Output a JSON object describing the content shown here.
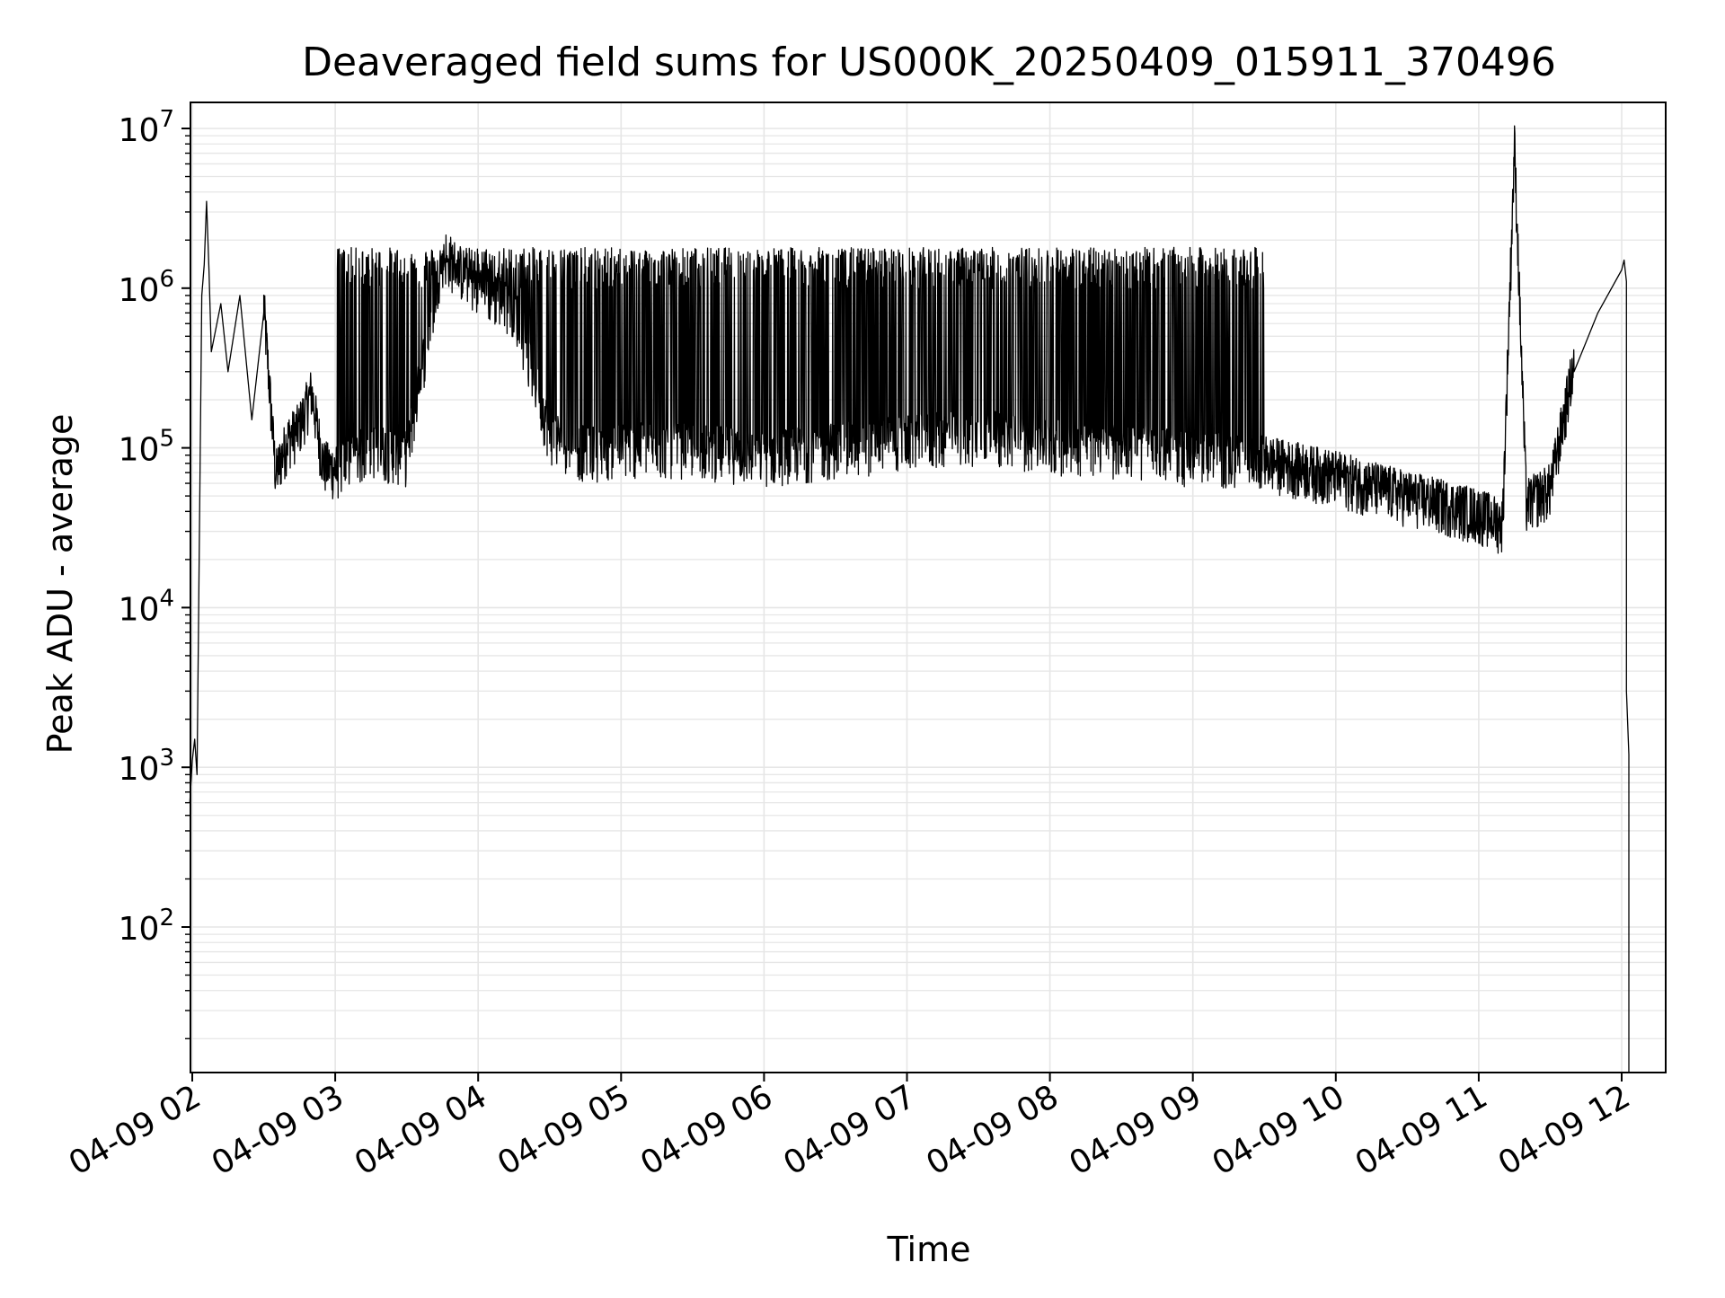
{
  "chart_data": {
    "type": "line",
    "title": "Deaveraged field sums for US000K_20250409_015911_370496",
    "xlabel": "Time",
    "ylabel": "Peak ADU - average",
    "yscale": "log",
    "ylim": [
      12,
      14000000
    ],
    "xlim": [
      "2025-04-09 01:59",
      "2025-04-09 12:03"
    ],
    "grid": true,
    "line_color": "#000000",
    "x_tick_labels": [
      "04-09 02",
      "04-09 03",
      "04-09 04",
      "04-09 05",
      "04-09 06",
      "04-09 07",
      "04-09 08",
      "04-09 09",
      "04-09 10",
      "04-09 11",
      "04-09 12"
    ],
    "y_ticks": [
      {
        "value": 100,
        "base": "10",
        "exp": "2"
      },
      {
        "value": 1000,
        "base": "10",
        "exp": "3"
      },
      {
        "value": 10000,
        "base": "10",
        "exp": "4"
      },
      {
        "value": 100000,
        "base": "10",
        "exp": "5"
      },
      {
        "value": 1000000,
        "base": "10",
        "exp": "6"
      },
      {
        "value": 10000000,
        "base": "10",
        "exp": "7"
      }
    ],
    "series": [
      {
        "points": [
          [
            "2025-04-09 01:59",
            600
          ],
          [
            "2025-04-09 02:00",
            1100
          ],
          [
            "2025-04-09 02:01",
            1500
          ],
          [
            "2025-04-09 02:02",
            900
          ],
          [
            "2025-04-09 02:04",
            900000
          ],
          [
            "2025-04-09 02:05",
            1400000
          ],
          [
            "2025-04-09 02:06",
            3500000
          ],
          [
            "2025-04-09 02:07",
            1300000
          ],
          [
            "2025-04-09 02:08",
            400000
          ],
          [
            "2025-04-09 02:12",
            800000
          ],
          [
            "2025-04-09 02:15",
            300000
          ],
          [
            "2025-04-09 02:20",
            900000
          ],
          [
            "2025-04-09 02:25",
            150000
          ],
          [
            "2025-04-09 02:30",
            700000
          ],
          [
            "2025-04-09 02:35",
            60000
          ],
          [
            "2025-04-09 02:40",
            100000
          ],
          [
            "2025-04-09 02:45",
            120000
          ],
          [
            "2025-04-09 02:50",
            200000
          ],
          [
            "2025-04-09 02:55",
            70000
          ],
          [
            "2025-04-09 03:00",
            65000
          ],
          [
            "2025-04-09 03:15",
            90000
          ],
          [
            "2025-04-09 03:30",
            80000
          ],
          [
            "2025-04-09 03:45",
            1500000
          ],
          [
            "2025-04-09 04:00",
            900000
          ],
          [
            "2025-04-09 04:15",
            700000
          ],
          [
            "2025-04-09 04:30",
            110000
          ],
          [
            "2025-04-09 04:45",
            85000
          ],
          [
            "2025-04-09 05:00",
            90000
          ],
          [
            "2025-04-09 05:30",
            90000
          ],
          [
            "2025-04-09 06:00",
            80000
          ],
          [
            "2025-04-09 06:30",
            90000
          ],
          [
            "2025-04-09 07:00",
            100000
          ],
          [
            "2025-04-09 07:30",
            110000
          ],
          [
            "2025-04-09 08:00",
            95000
          ],
          [
            "2025-04-09 08:30",
            90000
          ],
          [
            "2025-04-09 09:00",
            80000
          ],
          [
            "2025-04-09 09:30",
            75000
          ],
          [
            "2025-04-09 10:00",
            60000
          ],
          [
            "2025-04-09 10:30",
            45000
          ],
          [
            "2025-04-09 11:00",
            35000
          ],
          [
            "2025-04-09 11:10",
            30000
          ],
          [
            "2025-04-09 11:15",
            7000000
          ],
          [
            "2025-04-09 11:20",
            40000
          ],
          [
            "2025-04-09 11:30",
            50000
          ],
          [
            "2025-04-09 11:40",
            300000
          ],
          [
            "2025-04-09 11:50",
            700000
          ],
          [
            "2025-04-09 12:00",
            1300000
          ],
          [
            "2025-04-09 12:01",
            1500000
          ],
          [
            "2025-04-09 12:02",
            1100000
          ],
          [
            "2025-04-09 12:02",
            3000
          ],
          [
            "2025-04-09 12:03",
            1200
          ],
          [
            "2025-04-09 12:03",
            12
          ]
        ],
        "upper_envelope": 1800000,
        "upper_envelope_range": [
          "2025-04-09 03:00",
          "2025-04-09 09:30"
        ]
      }
    ]
  }
}
